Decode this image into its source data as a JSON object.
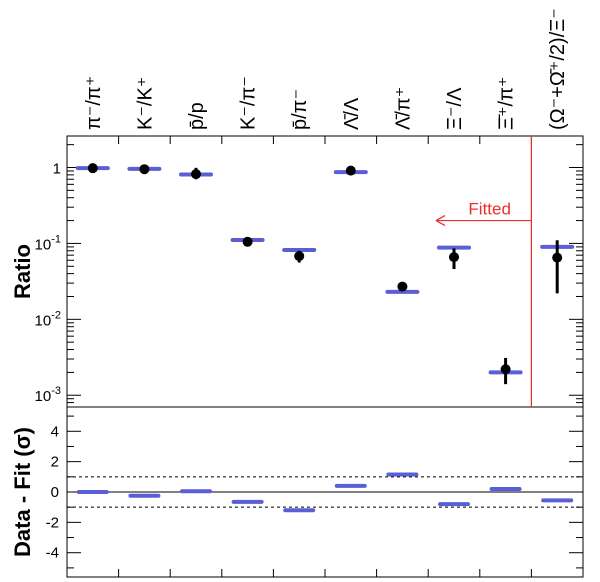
{
  "chart_data": [
    {
      "type": "scatter",
      "ylabel": "Ratio",
      "yscale": "log",
      "ylim": [
        0.0007,
        2.6
      ],
      "y_ticks": [
        {
          "value": 1,
          "base": "1",
          "exp": ""
        },
        {
          "value": 0.1,
          "base": "10",
          "exp": "-1"
        },
        {
          "value": 0.01,
          "base": "10",
          "exp": "-2"
        },
        {
          "value": 0.001,
          "base": "10",
          "exp": "-3"
        }
      ],
      "categories": [
        "π⁻/π⁺",
        "K⁻/K⁺",
        "p̄/p",
        "K⁻/π⁻",
        "p̄/π⁻",
        "Λ̄/Λ",
        "Λ̄/π⁺",
        "Ξ⁻/Λ",
        "Ξ̄⁺/π⁺",
        "(Ω⁻+Ω̄⁺/2)/Ξ⁻"
      ],
      "data": [
        0.98,
        0.95,
        0.82,
        0.105,
        0.068,
        0.91,
        0.027,
        0.066,
        0.0022,
        0.065
      ],
      "data_err_low": [
        0.09,
        0.05,
        0.12,
        0.006,
        0.012,
        0.05,
        0.0015,
        0.02,
        0.0008,
        0.043
      ],
      "data_err_high": [
        0.09,
        0.05,
        0.17,
        0.006,
        0.012,
        0.05,
        0.0015,
        0.02,
        0.0009,
        0.045
      ],
      "fit": [
        0.98,
        0.96,
        0.81,
        0.111,
        0.082,
        0.87,
        0.023,
        0.088,
        0.002,
        0.09
      ],
      "annotation": "Fitted",
      "fitted_boundary_index": 9,
      "series_colors": {
        "data": "#000000",
        "fit": "#5b5fd6",
        "annotation": "#e8302a"
      }
    },
    {
      "type": "scatter",
      "ylabel": "Data - Fit (σ)",
      "ylim": [
        -5.6,
        5.6
      ],
      "y_ticks": [
        -4,
        -2,
        0,
        2,
        4
      ],
      "reference_lines": [
        1,
        -1
      ],
      "categories": [
        "π⁻/π⁺",
        "K⁻/K⁺",
        "p̄/p",
        "K⁻/π⁻",
        "p̄/π⁻",
        "Λ̄/Λ",
        "Λ̄/π⁺",
        "Ξ⁻/Λ",
        "Ξ̄⁺/π⁺",
        "(Ω⁻+Ω̄⁺/2)/Ξ⁻"
      ],
      "values": [
        0.0,
        -0.25,
        0.05,
        -0.65,
        -1.2,
        0.4,
        1.15,
        -0.8,
        0.2,
        -0.55
      ],
      "series_colors": {
        "value": "#5b5fd6"
      }
    }
  ]
}
